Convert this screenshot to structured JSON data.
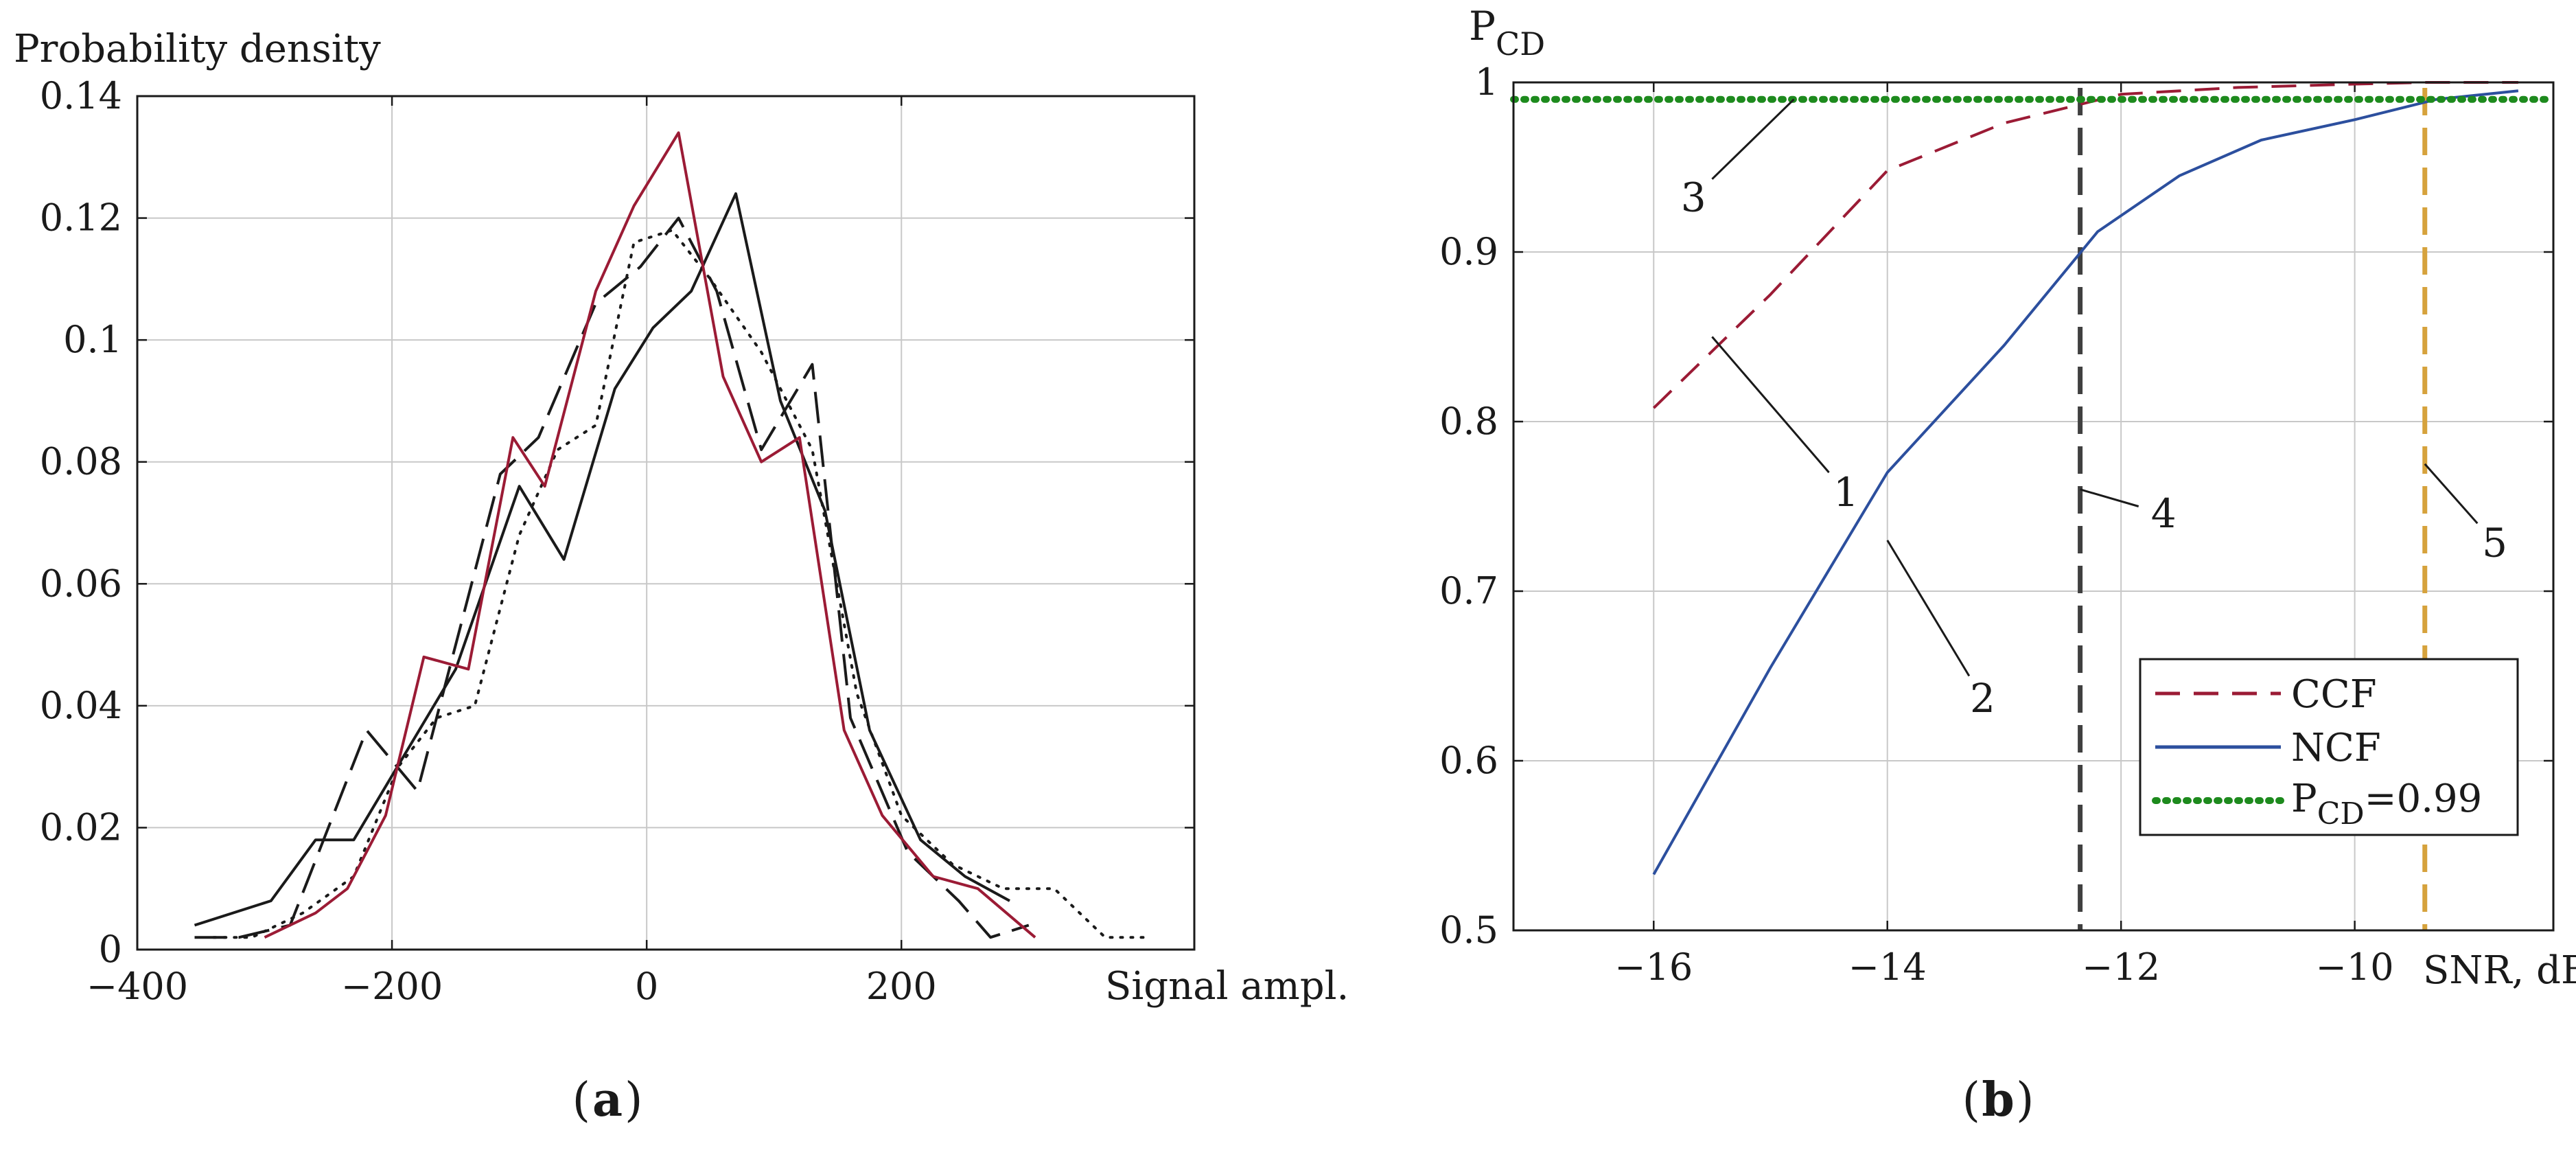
{
  "chart_data": [
    {
      "panel_label": "a",
      "type": "line",
      "title": "",
      "ylabel": "Probability density",
      "xlabel": "Signal ampl.",
      "xlim": [
        -400,
        430
      ],
      "ylim": [
        0,
        0.14
      ],
      "x_ticks": [
        -400,
        -200,
        0,
        200
      ],
      "x_tick_labels": [
        "−400",
        "−200",
        "0",
        "200"
      ],
      "y_ticks": [
        0,
        0.02,
        0.04,
        0.06,
        0.08,
        0.1,
        0.12,
        0.14
      ],
      "y_tick_labels": [
        "0",
        "0.02",
        "0.04",
        "0.06",
        "0.08",
        "0.1",
        "0.12",
        "0.14"
      ],
      "grid": true,
      "series": [
        {
          "name": "solid black",
          "color": "#1a1a1a",
          "dash": "solid",
          "x": [
            -355,
            -295,
            -260,
            -230,
            -190,
            -150,
            -100,
            -65,
            -25,
            5,
            35,
            70,
            105,
            140,
            175,
            215,
            250,
            285
          ],
          "y": [
            0.004,
            0.008,
            0.018,
            0.018,
            0.032,
            0.046,
            0.076,
            0.064,
            0.092,
            0.102,
            0.108,
            0.124,
            0.09,
            0.072,
            0.036,
            0.018,
            0.012,
            0.008
          ]
        },
        {
          "name": "long dash black",
          "color": "#1a1a1a",
          "dash": "long",
          "x": [
            -355,
            -320,
            -280,
            -220,
            -180,
            -150,
            -115,
            -85,
            -40,
            -5,
            25,
            55,
            90,
            130,
            160,
            205,
            245,
            270,
            300
          ],
          "y": [
            0.002,
            0.002,
            0.004,
            0.036,
            0.026,
            0.05,
            0.078,
            0.084,
            0.106,
            0.112,
            0.12,
            0.108,
            0.082,
            0.096,
            0.038,
            0.016,
            0.008,
            0.002,
            0.004
          ]
        },
        {
          "name": "dotted black",
          "color": "#1a1a1a",
          "dash": "dot",
          "x": [
            -340,
            -310,
            -270,
            -230,
            -195,
            -165,
            -135,
            -100,
            -70,
            -40,
            -10,
            20,
            50,
            90,
            130,
            165,
            200,
            240,
            280,
            320,
            360,
            395
          ],
          "y": [
            0.002,
            0.002,
            0.006,
            0.012,
            0.03,
            0.038,
            0.04,
            0.068,
            0.082,
            0.086,
            0.116,
            0.118,
            0.11,
            0.098,
            0.082,
            0.042,
            0.022,
            0.014,
            0.01,
            0.01,
            0.002,
            0.002
          ]
        },
        {
          "name": "solid red",
          "color": "#9b1b35",
          "dash": "solid",
          "x": [
            -300,
            -260,
            -235,
            -205,
            -175,
            -140,
            -105,
            -80,
            -40,
            -10,
            25,
            60,
            90,
            120,
            155,
            185,
            225,
            260,
            305
          ],
          "y": [
            0.002,
            0.006,
            0.01,
            0.022,
            0.048,
            0.046,
            0.084,
            0.076,
            0.108,
            0.122,
            0.134,
            0.094,
            0.08,
            0.084,
            0.036,
            0.022,
            0.012,
            0.01,
            0.002
          ]
        }
      ]
    },
    {
      "panel_label": "b",
      "type": "line",
      "title": "",
      "ylabel_main": "P",
      "ylabel_sub": "CD",
      "xlabel": "SNR, dB",
      "xlim": [
        -17.2,
        -8.3
      ],
      "ylim": [
        0.5,
        1.0
      ],
      "x_ticks": [
        -16,
        -14,
        -12,
        -10
      ],
      "x_tick_labels": [
        "−16",
        "−14",
        "−12",
        "−10"
      ],
      "y_ticks": [
        0.5,
        0.6,
        0.7,
        0.8,
        0.9,
        1.0
      ],
      "y_tick_labels": [
        "0.5",
        "0.6",
        "0.7",
        "0.8",
        "0.9",
        "1"
      ],
      "grid": true,
      "series": [
        {
          "name": "CCF",
          "color": "#9b1b35",
          "dash": "dash",
          "x": [
            -16,
            -15,
            -14,
            -13,
            -12,
            -11,
            -10,
            -9.4,
            -8.6
          ],
          "y": [
            0.808,
            0.875,
            0.948,
            0.976,
            0.993,
            0.997,
            0.999,
            1.0,
            1.0
          ]
        },
        {
          "name": "NCF",
          "color": "#2c4f9e",
          "dash": "solid",
          "x": [
            -16,
            -15,
            -14,
            -13,
            -12.2,
            -11.5,
            -10.8,
            -10,
            -9.3,
            -8.6
          ],
          "y": [
            0.533,
            0.655,
            0.77,
            0.845,
            0.912,
            0.945,
            0.966,
            0.978,
            0.99,
            0.995
          ]
        },
        {
          "name": "P_CD=0.99",
          "color": "#1d8a1d",
          "dash": "dot",
          "x": [
            -17.2,
            -8.3
          ],
          "y": [
            0.99,
            0.99
          ]
        }
      ],
      "vertical_lines": [
        {
          "x": -12.35,
          "color": "#404040",
          "label": "4"
        },
        {
          "x": -9.4,
          "color": "#d6a23c",
          "label": "5"
        }
      ],
      "legend": {
        "position": "bottom-right",
        "entries": [
          {
            "label": "CCF",
            "color": "#9b1b35",
            "dash": "dash"
          },
          {
            "label": "NCF",
            "color": "#2c4f9e",
            "dash": "solid"
          },
          {
            "label_main": "P",
            "label_sub": "CD",
            "label_tail": "=0.99",
            "color": "#1d8a1d",
            "dash": "dot"
          }
        ]
      },
      "annotations": [
        {
          "text": "1",
          "tail": [
            -15.5,
            0.85
          ],
          "head": [
            -14.5,
            0.77
          ]
        },
        {
          "text": "2",
          "tail": [
            -14.0,
            0.73
          ],
          "head": [
            -13.3,
            0.65
          ]
        },
        {
          "text": "3",
          "tail": [
            -14.8,
            0.99
          ],
          "head": [
            -15.5,
            0.943
          ]
        },
        {
          "text": "4",
          "tail": [
            -12.35,
            0.76
          ],
          "head": [
            -11.85,
            0.75
          ]
        },
        {
          "text": "5",
          "tail": [
            -9.4,
            0.775
          ],
          "head": [
            -8.95,
            0.74
          ]
        }
      ]
    }
  ]
}
